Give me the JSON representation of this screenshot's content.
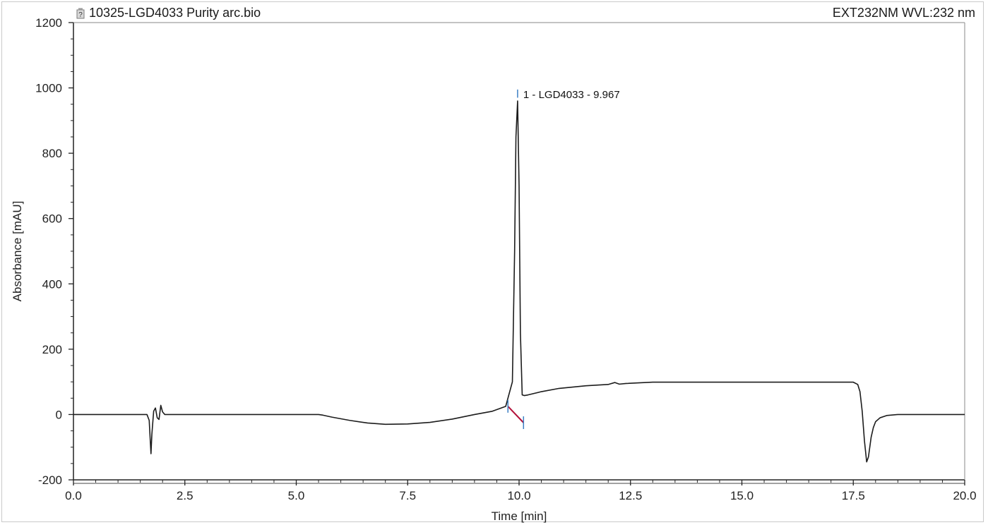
{
  "header": {
    "file_name": "10325-LGD4033 Purity arc.bio",
    "detector": "EXT232NM WVL:232 nm",
    "file_icon": "chromatogram-file-icon"
  },
  "colors": {
    "trace": "#1c1c1c",
    "baseline": "#b3123a",
    "peak_marker": "#3b7fc4",
    "axis": "#222222"
  },
  "chart_data": {
    "type": "line",
    "xlabel": "Time [min]",
    "ylabel": "Absorbance [mAU]",
    "xlim": [
      0,
      20
    ],
    "ylim": [
      -200,
      1200
    ],
    "x_ticks": [
      0.0,
      2.5,
      5.0,
      7.5,
      10.0,
      12.5,
      15.0,
      17.5,
      20.0
    ],
    "x_tick_labels": [
      "0.0",
      "2.5",
      "5.0",
      "7.5",
      "10.0",
      "12.5",
      "15.0",
      "17.5",
      "20.0"
    ],
    "y_ticks": [
      -200,
      0,
      200,
      400,
      600,
      800,
      1000,
      1200
    ],
    "y_tick_labels": [
      "-200",
      "0",
      "200",
      "400",
      "600",
      "800",
      "1000",
      "1200"
    ],
    "grid": false,
    "series": [
      {
        "x": [
          0.0,
          1.0,
          1.65,
          1.7,
          1.72,
          1.74,
          1.76,
          1.8,
          1.84,
          1.88,
          1.92,
          1.96,
          2.0,
          2.05,
          2.1,
          2.3,
          3.0,
          4.0,
          5.0,
          5.5,
          5.6,
          5.8,
          6.2,
          6.6,
          7.0,
          7.5,
          8.0,
          8.5,
          9.0,
          9.4,
          9.7,
          9.85,
          9.9,
          9.93,
          9.967,
          10.0,
          10.03,
          10.07,
          10.12,
          10.2,
          10.5,
          10.9,
          11.5,
          12.0,
          12.15,
          12.25,
          12.4,
          13.0,
          14.0,
          15.0,
          16.0,
          17.0,
          17.5,
          17.6,
          17.65,
          17.7,
          17.75,
          17.8,
          17.84,
          17.87,
          17.9,
          17.95,
          18.0,
          18.1,
          18.25,
          18.5,
          18.8,
          19.2,
          20.0
        ],
        "y": [
          0,
          0,
          0,
          -18,
          -70,
          -120,
          -60,
          10,
          20,
          -10,
          -15,
          28,
          8,
          0,
          0,
          0,
          0,
          0,
          0,
          0,
          -2,
          -8,
          -18,
          -26,
          -30,
          -29,
          -24,
          -14,
          0,
          10,
          25,
          100,
          500,
          850,
          960,
          700,
          250,
          60,
          58,
          60,
          70,
          80,
          88,
          92,
          98,
          93,
          95,
          99,
          99,
          99,
          99,
          99,
          99,
          92,
          70,
          10,
          -80,
          -145,
          -130,
          -100,
          -70,
          -40,
          -22,
          -10,
          -3,
          0,
          0,
          0,
          0
        ]
      }
    ],
    "peaks": [
      {
        "number": 1,
        "name": "LGD4033",
        "retention_time": 9.967,
        "label": "1 - LGD4033 - 9.967",
        "start": 9.75,
        "end": 10.1
      }
    ],
    "baseline_segment": {
      "x": [
        9.75,
        10.1
      ],
      "y": [
        25,
        -25
      ]
    }
  }
}
